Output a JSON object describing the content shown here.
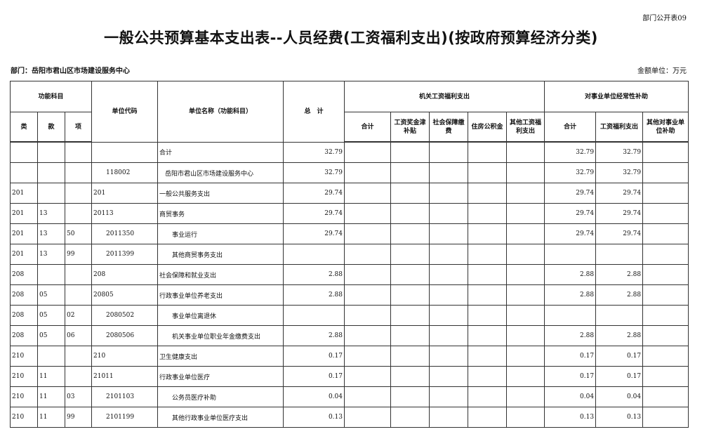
{
  "form_code": "部门公开表09",
  "title": "一般公共预算基本支出表--人员经费(工资福利支出)(按政府预算经济分类)",
  "department": "部门：岳阳市君山区市场建设服务中心",
  "unit": "金额单位：万元",
  "headers": {
    "func": "功能科目",
    "lei": "类",
    "kuan": "款",
    "xiang": "项",
    "code": "单位代码",
    "name": "单位名称（功能科目）",
    "total": "总　计",
    "jg": "机关工资福利支出",
    "jg_sum": "合计",
    "jg_wage": "工资奖金津补贴",
    "jg_social": "社会保障缴费",
    "jg_housing": "住房公积金",
    "jg_other": "其他工资福利支出",
    "sy": "对事业单位经常性补助",
    "sy_sum": "合计",
    "sy_wage": "工资福利支出",
    "sy_other": "其他对事业单位补助"
  },
  "rows": [
    {
      "lei": "",
      "kuan": "",
      "xiang": "",
      "code": "",
      "name": "合计",
      "total": "32.79",
      "sy_sum": "32.79",
      "sy_wage": "32.79",
      "indent": 0
    },
    {
      "lei": "",
      "kuan": "",
      "xiang": "",
      "code": "118002",
      "name": "岳阳市君山区市场建设服务中心",
      "total": "32.79",
      "sy_sum": "32.79",
      "sy_wage": "32.79",
      "indent": 1
    },
    {
      "lei": "201",
      "kuan": "",
      "xiang": "",
      "code": "201",
      "name": "一般公共服务支出",
      "total": "29.74",
      "sy_sum": "29.74",
      "sy_wage": "29.74",
      "indent": 0
    },
    {
      "lei": "201",
      "kuan": "13",
      "xiang": "",
      "code": "20113",
      "name": "商贸事务",
      "total": "29.74",
      "sy_sum": "29.74",
      "sy_wage": "29.74",
      "indent": 0
    },
    {
      "lei": "201",
      "kuan": "13",
      "xiang": "50",
      "code": "2011350",
      "name": "事业运行",
      "total": "29.74",
      "sy_sum": "29.74",
      "sy_wage": "29.74",
      "indent": 2
    },
    {
      "lei": "201",
      "kuan": "13",
      "xiang": "99",
      "code": "2011399",
      "name": "其他商贸事务支出",
      "total": "",
      "sy_sum": "",
      "sy_wage": "",
      "indent": 2
    },
    {
      "lei": "208",
      "kuan": "",
      "xiang": "",
      "code": "208",
      "name": "社会保障和就业支出",
      "total": "2.88",
      "sy_sum": "2.88",
      "sy_wage": "2.88",
      "indent": 0
    },
    {
      "lei": "208",
      "kuan": "05",
      "xiang": "",
      "code": "20805",
      "name": "行政事业单位养老支出",
      "total": "2.88",
      "sy_sum": "2.88",
      "sy_wage": "2.88",
      "indent": 0
    },
    {
      "lei": "208",
      "kuan": "05",
      "xiang": "02",
      "code": "2080502",
      "name": "事业单位离退休",
      "total": "",
      "sy_sum": "",
      "sy_wage": "",
      "indent": 2
    },
    {
      "lei": "208",
      "kuan": "05",
      "xiang": "06",
      "code": "2080506",
      "name": "机关事业单位职业年金缴费支出",
      "total": "2.88",
      "sy_sum": "2.88",
      "sy_wage": "2.88",
      "indent": 2
    },
    {
      "lei": "210",
      "kuan": "",
      "xiang": "",
      "code": "210",
      "name": "卫生健康支出",
      "total": "0.17",
      "sy_sum": "0.17",
      "sy_wage": "0.17",
      "indent": 0
    },
    {
      "lei": "210",
      "kuan": "11",
      "xiang": "",
      "code": "21011",
      "name": "行政事业单位医疗",
      "total": "0.17",
      "sy_sum": "0.17",
      "sy_wage": "0.17",
      "indent": 0
    },
    {
      "lei": "210",
      "kuan": "11",
      "xiang": "03",
      "code": "2101103",
      "name": "公务员医疗补助",
      "total": "0.04",
      "sy_sum": "0.04",
      "sy_wage": "0.04",
      "indent": 2
    },
    {
      "lei": "210",
      "kuan": "11",
      "xiang": "99",
      "code": "2101199",
      "name": "其他行政事业单位医疗支出",
      "total": "0.13",
      "sy_sum": "0.13",
      "sy_wage": "0.13",
      "indent": 2
    }
  ]
}
